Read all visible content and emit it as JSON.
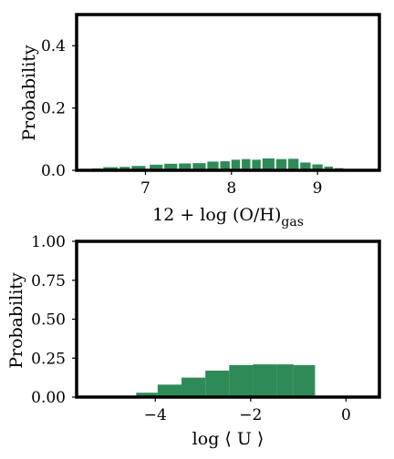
{
  "colors": {
    "bar": "#2e8b57"
  },
  "chart_data": [
    {
      "type": "bar",
      "xlabel": "12 + log (O/H)",
      "xlabel_subscript": "gas",
      "ylabel": "Probability",
      "xlim": [
        6.2,
        9.72
      ],
      "ylim": [
        0.0,
        0.5
      ],
      "xticks": [
        "7",
        "8",
        "9"
      ],
      "yticks": [
        "0.0",
        "0.2",
        "0.4"
      ],
      "bins": [
        {
          "x0": 6.38,
          "x1": 6.49,
          "value": 0.006
        },
        {
          "x0": 6.51,
          "x1": 6.68,
          "value": 0.01
        },
        {
          "x0": 6.7,
          "x1": 6.82,
          "value": 0.011
        },
        {
          "x0": 6.84,
          "x1": 7.0,
          "value": 0.014
        },
        {
          "x0": 7.05,
          "x1": 7.2,
          "value": 0.018
        },
        {
          "x0": 7.22,
          "x1": 7.37,
          "value": 0.021
        },
        {
          "x0": 7.39,
          "x1": 7.53,
          "value": 0.022
        },
        {
          "x0": 7.55,
          "x1": 7.7,
          "value": 0.023
        },
        {
          "x0": 7.72,
          "x1": 7.85,
          "value": 0.028
        },
        {
          "x0": 7.87,
          "x1": 7.98,
          "value": 0.029
        },
        {
          "x0": 8.0,
          "x1": 8.1,
          "value": 0.034
        },
        {
          "x0": 8.12,
          "x1": 8.22,
          "value": 0.036
        },
        {
          "x0": 8.24,
          "x1": 8.34,
          "value": 0.034
        },
        {
          "x0": 8.36,
          "x1": 8.5,
          "value": 0.038
        },
        {
          "x0": 8.52,
          "x1": 8.64,
          "value": 0.036
        },
        {
          "x0": 8.66,
          "x1": 8.78,
          "value": 0.037
        },
        {
          "x0": 8.8,
          "x1": 8.92,
          "value": 0.025
        },
        {
          "x0": 8.94,
          "x1": 9.06,
          "value": 0.019
        },
        {
          "x0": 9.08,
          "x1": 9.18,
          "value": 0.012
        },
        {
          "x0": 9.2,
          "x1": 9.3,
          "value": 0.007
        },
        {
          "x0": 9.32,
          "x1": 9.4,
          "value": 0.003
        }
      ]
    },
    {
      "type": "bar",
      "xlabel": "log ⟨ U ⟩",
      "ylabel": "Probability",
      "xlim": [
        -5.65,
        0.7
      ],
      "ylim": [
        0.0,
        1.0
      ],
      "xticks": [
        "−4",
        "−2",
        "0"
      ],
      "yticks": [
        "0.00",
        "0.25",
        "0.50",
        "0.75",
        "1.00"
      ],
      "bins": [
        {
          "x0": -4.4,
          "x1": -3.95,
          "value": 0.028
        },
        {
          "x0": -3.95,
          "x1": -3.45,
          "value": 0.08
        },
        {
          "x0": -3.45,
          "x1": -2.95,
          "value": 0.125
        },
        {
          "x0": -2.95,
          "x1": -2.45,
          "value": 0.17
        },
        {
          "x0": -2.45,
          "x1": -1.95,
          "value": 0.205
        },
        {
          "x0": -1.95,
          "x1": -1.45,
          "value": 0.21
        },
        {
          "x0": -1.45,
          "x1": -1.1,
          "value": 0.21
        },
        {
          "x0": -1.1,
          "x1": -0.65,
          "value": 0.205
        }
      ]
    }
  ]
}
